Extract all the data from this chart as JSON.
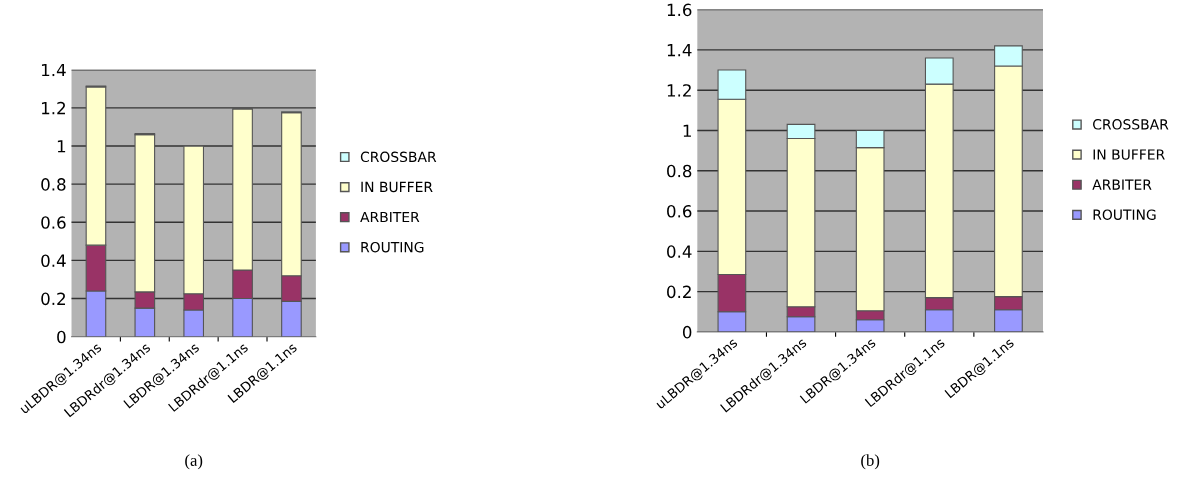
{
  "chart_data": [
    {
      "type": "bar",
      "title": "(a)",
      "stacked": true,
      "categories": [
        "uLBDR@1.34ns",
        "LBDRdr@1.34ns",
        "LBDR@1.34ns",
        "LBDRdr@1.1ns",
        "LBDR@1.1ns"
      ],
      "series": [
        {
          "name": "ROUTING",
          "color": "#9999ff",
          "values": [
            0.24,
            0.15,
            0.14,
            0.2,
            0.185
          ]
        },
        {
          "name": "ARBITER",
          "color": "#993366",
          "values": [
            0.24,
            0.085,
            0.085,
            0.15,
            0.135
          ]
        },
        {
          "name": "IN BUFFER",
          "color": "#ffffcc",
          "values": [
            0.83,
            0.825,
            0.775,
            0.845,
            0.855
          ]
        },
        {
          "name": "CROSSBAR",
          "color": "#ccffff",
          "values": [
            0.005,
            0.005,
            0.003,
            0.005,
            0.005
          ]
        }
      ],
      "ylim": [
        0,
        1.4
      ],
      "yticks": [
        0,
        0.2,
        0.4,
        0.6,
        0.8,
        1,
        1.2,
        1.4
      ],
      "grid": "y",
      "legend": "right"
    },
    {
      "type": "bar",
      "title": "(b)",
      "stacked": true,
      "categories": [
        "uLBDR@1.34ns",
        "LBDRdr@1.34ns",
        "LBDR@1.34ns",
        "LBDRdr@1.1ns",
        "LBDR@1.1ns"
      ],
      "series": [
        {
          "name": "ROUTING",
          "color": "#9999ff",
          "values": [
            0.1,
            0.075,
            0.06,
            0.11,
            0.11
          ]
        },
        {
          "name": "ARBITER",
          "color": "#993366",
          "values": [
            0.185,
            0.05,
            0.045,
            0.06,
            0.065
          ]
        },
        {
          "name": "IN BUFFER",
          "color": "#ffffcc",
          "values": [
            0.87,
            0.835,
            0.81,
            1.06,
            1.145
          ]
        },
        {
          "name": "CROSSBAR",
          "color": "#ccffff",
          "values": [
            0.145,
            0.07,
            0.085,
            0.13,
            0.1
          ]
        }
      ],
      "ylim": [
        0,
        1.6
      ],
      "yticks": [
        0,
        0.2,
        0.4,
        0.6,
        0.8,
        1,
        1.2,
        1.4,
        1.6
      ],
      "grid": "y",
      "legend": "right"
    }
  ]
}
